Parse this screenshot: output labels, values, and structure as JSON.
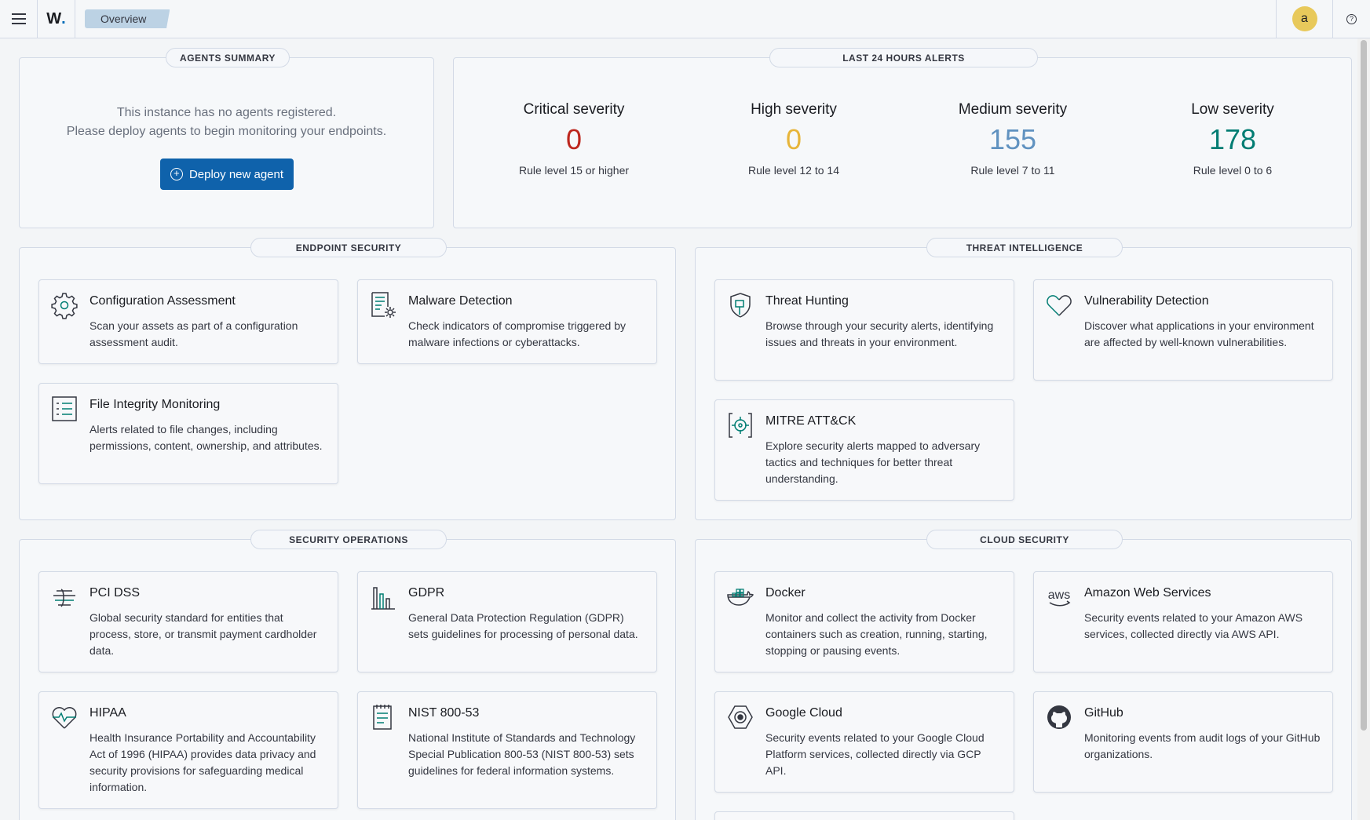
{
  "header": {
    "logo": "W",
    "breadcrumb": "Overview",
    "avatar_letter": "a"
  },
  "agents_summary": {
    "title": "AGENTS SUMMARY",
    "line1": "This instance has no agents registered.",
    "line2": "Please deploy agents to begin monitoring your endpoints.",
    "deploy_button": "Deploy new agent"
  },
  "alerts": {
    "title": "LAST 24 HOURS ALERTS",
    "items": [
      {
        "title": "Critical severity",
        "value": "0",
        "rule": "Rule level 15 or higher",
        "color": "#bd271e"
      },
      {
        "title": "High severity",
        "value": "0",
        "rule": "Rule level 12 to 14",
        "color": "#e7b53a"
      },
      {
        "title": "Medium severity",
        "value": "155",
        "rule": "Rule level 7 to 11",
        "color": "#6092c0"
      },
      {
        "title": "Low severity",
        "value": "178",
        "rule": "Rule level 0 to 6",
        "color": "#017d73"
      }
    ]
  },
  "endpoint_security": {
    "title": "ENDPOINT SECURITY",
    "cards": [
      {
        "title": "Configuration Assessment",
        "desc": "Scan your assets as part of a configuration assessment audit.",
        "icon": "gear-icon"
      },
      {
        "title": "Malware Detection",
        "desc": "Check indicators of compromise triggered by malware infections or cyberattacks.",
        "icon": "document-gear-icon"
      },
      {
        "title": "File Integrity Monitoring",
        "desc": "Alerts related to file changes, including permissions, content, ownership, and attributes.",
        "icon": "list-icon"
      }
    ]
  },
  "threat_intelligence": {
    "title": "THREAT INTELLIGENCE",
    "cards": [
      {
        "title": "Threat Hunting",
        "desc": "Browse through your security alerts, identifying issues and threats in your environment.",
        "icon": "shield-icon"
      },
      {
        "title": "Vulnerability Detection",
        "desc": "Discover what applications in your environment are affected by well-known vulnerabilities.",
        "icon": "heart-broken-icon"
      },
      {
        "title": "MITRE ATT&CK",
        "desc": "Explore security alerts mapped to adversary tactics and techniques for better threat understanding.",
        "icon": "crosshair-icon"
      }
    ]
  },
  "security_operations": {
    "title": "SECURITY OPERATIONS",
    "cards": [
      {
        "title": "PCI DSS",
        "desc": "Global security standard for entities that process, store, or transmit payment cardholder data.",
        "icon": "lines-icon"
      },
      {
        "title": "GDPR",
        "desc": "General Data Protection Regulation (GDPR) sets guidelines for processing of personal data.",
        "icon": "bars-icon"
      },
      {
        "title": "HIPAA",
        "desc": "Health Insurance Portability and Accountability Act of 1996 (HIPAA) provides data privacy and security provisions for safeguarding medical information.",
        "icon": "heart-pulse-icon"
      },
      {
        "title": "NIST 800-53",
        "desc": "National Institute of Standards and Technology Special Publication 800-53 (NIST 800-53) sets guidelines for federal information systems.",
        "icon": "notebook-icon"
      }
    ]
  },
  "cloud_security": {
    "title": "CLOUD SECURITY",
    "cards": [
      {
        "title": "Docker",
        "desc": "Monitor and collect the activity from Docker containers such as creation, running, starting, stopping or pausing events.",
        "icon": "docker-icon"
      },
      {
        "title": "Amazon Web Services",
        "desc": "Security events related to your Amazon AWS services, collected directly via AWS API.",
        "icon": "aws-icon",
        "icon_text": "aws"
      },
      {
        "title": "Google Cloud",
        "desc": "Security events related to your Google Cloud Platform services, collected directly via GCP API.",
        "icon": "google-cloud-icon"
      },
      {
        "title": "GitHub",
        "desc": "Monitoring events from audit logs of your GitHub organizations.",
        "icon": "github-icon"
      }
    ]
  }
}
